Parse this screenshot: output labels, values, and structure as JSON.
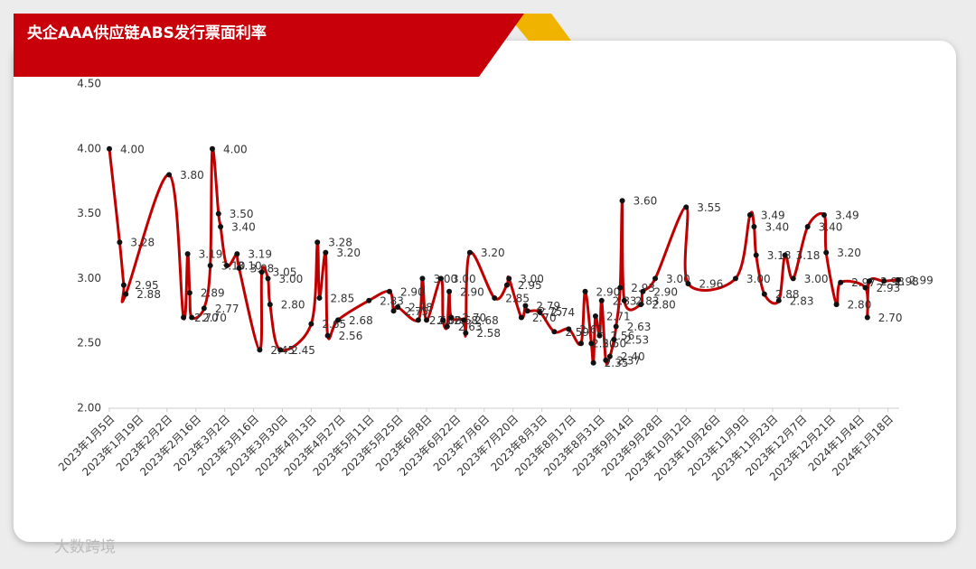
{
  "chart_data": {
    "type": "line",
    "title": "央企AAA供应链ABS发行票面利率",
    "watermark": "大数跨境",
    "x": [
      "2023-01-05",
      "2023-01-10",
      "2023-01-12",
      "2023-01-13",
      "2023-02-03",
      "2023-02-10",
      "2023-02-12",
      "2023-02-13",
      "2023-02-14",
      "2023-02-20",
      "2023-02-23",
      "2023-02-24",
      "2023-02-27",
      "2023-02-28",
      "2023-03-03",
      "2023-03-08",
      "2023-03-09",
      "2023-03-19",
      "2023-03-20",
      "2023-03-23",
      "2023-03-24",
      "2023-03-29",
      "2023-04-13",
      "2023-04-16",
      "2023-04-17",
      "2023-04-20",
      "2023-04-21",
      "2023-04-26",
      "2023-05-11",
      "2023-05-21",
      "2023-05-23",
      "2023-05-25",
      "2023-06-04",
      "2023-06-06",
      "2023-06-08",
      "2023-06-15",
      "2023-06-16",
      "2023-06-18",
      "2023-06-19",
      "2023-06-20",
      "2023-06-26",
      "2023-06-27",
      "2023-06-29",
      "2023-07-11",
      "2023-07-17",
      "2023-07-18",
      "2023-07-24",
      "2023-07-26",
      "2023-07-27",
      "2023-08-02",
      "2023-08-09",
      "2023-08-16",
      "2023-08-22",
      "2023-08-24",
      "2023-08-27",
      "2023-08-28",
      "2023-08-29",
      "2023-08-31",
      "2023-09-01",
      "2023-09-03",
      "2023-09-05",
      "2023-09-07",
      "2023-09-08",
      "2023-09-10",
      "2023-09-11",
      "2023-09-12",
      "2023-09-20",
      "2023-09-21",
      "2023-09-27",
      "2023-10-12",
      "2023-10-13",
      "2023-11-05",
      "2023-11-12",
      "2023-11-14",
      "2023-11-15",
      "2023-11-19",
      "2023-11-26",
      "2023-11-29",
      "2023-12-03",
      "2023-12-10",
      "2023-12-18",
      "2023-12-19",
      "2023-12-24",
      "2023-12-26",
      "2024-01-07",
      "2024-01-08",
      "2024-01-09",
      "2024-01-16",
      "2024-01-23"
    ],
    "series": [
      {
        "name": "票面利率",
        "color": "#c00000",
        "values": [
          4,
          3.28,
          2.95,
          2.88,
          3.8,
          2.7,
          3.19,
          2.89,
          2.7,
          2.77,
          3.1,
          4,
          3.5,
          3.4,
          3.1,
          3.19,
          3.08,
          2.45,
          3.05,
          3,
          2.8,
          2.45,
          2.65,
          3.28,
          2.85,
          3.2,
          2.56,
          2.68,
          2.83,
          2.9,
          2.75,
          2.78,
          2.68,
          3,
          2.68,
          3,
          2.68,
          2.63,
          2.9,
          2.7,
          2.68,
          2.58,
          3.2,
          2.85,
          2.95,
          3,
          2.7,
          2.79,
          2.75,
          2.74,
          2.59,
          2.61,
          2.5,
          2.9,
          2.5,
          2.35,
          2.71,
          2.56,
          2.83,
          2.37,
          2.4,
          2.53,
          2.63,
          2.93,
          3.6,
          2.83,
          2.8,
          2.9,
          3,
          3.55,
          2.96,
          3,
          3.49,
          3.4,
          3.18,
          2.88,
          2.83,
          3.18,
          3,
          3.4,
          3.49,
          3.2,
          2.8,
          2.97,
          2.93,
          2.7,
          2.98,
          2.98,
          2.99
        ],
        "value_labels": [
          "4.00",
          "3.28",
          "2.95",
          "2.88",
          "3.80",
          "2.70",
          "3.19",
          "2.89",
          "2.70",
          "2.77",
          "3.10",
          "4.00",
          "3.50",
          "3.40",
          "3.10",
          "3.19",
          "3.08",
          "2.45",
          "3.05",
          "3.00",
          "2.80",
          "2.45",
          "2.65",
          "3.28",
          "2.85",
          "3.20",
          "2.56",
          "2.68",
          "2.83",
          "2.90",
          "2.75",
          "2.78",
          "2.68",
          "3.00",
          "2.68",
          "3.00",
          "2.68",
          "2.63",
          "2.90",
          "2.70",
          "2.68",
          "2.58",
          "3.20",
          "2.85",
          "2.95",
          "3.00",
          "2.70",
          "2.79",
          "2.75",
          "2.74",
          "2.59",
          "2.61",
          "2.50",
          "2.90",
          "2.50",
          "2.35",
          "2.71",
          "2.56",
          "2.83",
          "2.37",
          "2.40",
          "2.53",
          "2.63",
          "2.93",
          "3.60",
          "2.83",
          "2.80",
          "2.90",
          "3.00",
          "3.55",
          "2.96",
          "3.00",
          "3.49",
          "3.40",
          "3.18",
          "2.88",
          "2.83",
          "3.18",
          "3.00",
          "3.40",
          "3.49",
          "3.20",
          "2.80",
          "2.97",
          "2.93",
          "2.70",
          "2.98",
          "2.98",
          "2.99"
        ]
      }
    ],
    "xlim": [
      "2023-01-05",
      "2024-01-23"
    ],
    "xticks": [
      {
        "value": "2023-01-05",
        "label": "2023年1月5日"
      },
      {
        "value": "2023-01-19",
        "label": "2023年1月19日"
      },
      {
        "value": "2023-02-02",
        "label": "2023年2月2日"
      },
      {
        "value": "2023-02-16",
        "label": "2023年2月16日"
      },
      {
        "value": "2023-03-02",
        "label": "2023年3月2日"
      },
      {
        "value": "2023-03-16",
        "label": "2023年3月16日"
      },
      {
        "value": "2023-03-30",
        "label": "2023年3月30日"
      },
      {
        "value": "2023-04-13",
        "label": "2023年4月13日"
      },
      {
        "value": "2023-04-27",
        "label": "2023年4月27日"
      },
      {
        "value": "2023-05-11",
        "label": "2023年5月11日"
      },
      {
        "value": "2023-05-25",
        "label": "2023年5月25日"
      },
      {
        "value": "2023-06-08",
        "label": "2023年6月8日"
      },
      {
        "value": "2023-06-22",
        "label": "2023年6月22日"
      },
      {
        "value": "2023-07-06",
        "label": "2023年7月6日"
      },
      {
        "value": "2023-07-20",
        "label": "2023年7月20日"
      },
      {
        "value": "2023-08-03",
        "label": "2023年8月3日"
      },
      {
        "value": "2023-08-17",
        "label": "2023年8月17日"
      },
      {
        "value": "2023-08-31",
        "label": "2023年8月31日"
      },
      {
        "value": "2023-09-14",
        "label": "2023年9月14日"
      },
      {
        "value": "2023-09-28",
        "label": "2023年9月28日"
      },
      {
        "value": "2023-10-12",
        "label": "2023年10月12日"
      },
      {
        "value": "2023-10-26",
        "label": "2023年10月26日"
      },
      {
        "value": "2023-11-09",
        "label": "2023年11月9日"
      },
      {
        "value": "2023-11-23",
        "label": "2023年11月23日"
      },
      {
        "value": "2023-12-07",
        "label": "2023年12月7日"
      },
      {
        "value": "2023-12-21",
        "label": "2023年12月21日"
      },
      {
        "value": "2024-01-04",
        "label": "2024年1月4日"
      },
      {
        "value": "2024-01-18",
        "label": "2024年1月18日"
      }
    ],
    "ylim": [
      2,
      4.5
    ],
    "yticks": [
      {
        "value": 2,
        "label": "2.00"
      },
      {
        "value": 2.5,
        "label": "2.50"
      },
      {
        "value": 3,
        "label": "3.00"
      },
      {
        "value": 3.5,
        "label": "3.50"
      },
      {
        "value": 4,
        "label": "4.00"
      },
      {
        "value": 4.5,
        "label": "4.50"
      }
    ],
    "grid": false
  }
}
